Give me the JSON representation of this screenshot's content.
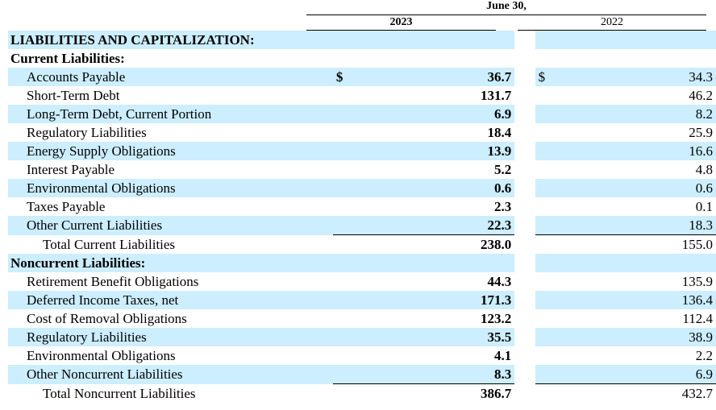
{
  "header": {
    "period": "June 30,",
    "year_current": "2023",
    "year_prior": "2022"
  },
  "section_title": "LIABILITIES AND CAPITALIZATION:",
  "current": {
    "title": "Current Liabilities:",
    "rows": [
      {
        "label": "Accounts Payable",
        "sym": "$",
        "v2023": "36.7",
        "v2022": "34.3"
      },
      {
        "label": "Short-Term Debt",
        "sym": "",
        "v2023": "131.7",
        "v2022": "46.2"
      },
      {
        "label": "Long-Term Debt, Current Portion",
        "sym": "",
        "v2023": "6.9",
        "v2022": "8.2"
      },
      {
        "label": "Regulatory Liabilities",
        "sym": "",
        "v2023": "18.4",
        "v2022": "25.9"
      },
      {
        "label": "Energy Supply Obligations",
        "sym": "",
        "v2023": "13.9",
        "v2022": "16.6"
      },
      {
        "label": "Interest Payable",
        "sym": "",
        "v2023": "5.2",
        "v2022": "4.8"
      },
      {
        "label": "Environmental Obligations",
        "sym": "",
        "v2023": "0.6",
        "v2022": "0.6"
      },
      {
        "label": "Taxes Payable",
        "sym": "",
        "v2023": "2.3",
        "v2022": "0.1"
      },
      {
        "label": "Other Current Liabilities",
        "sym": "",
        "v2023": "22.3",
        "v2022": "18.3"
      }
    ],
    "total": {
      "label": "Total Current Liabilities",
      "v2023": "238.0",
      "v2022": "155.0"
    }
  },
  "noncurrent": {
    "title": "Noncurrent Liabilities:",
    "rows": [
      {
        "label": "Retirement Benefit Obligations",
        "sym": "",
        "v2023": "44.3",
        "v2022": "135.9"
      },
      {
        "label": "Deferred Income Taxes, net",
        "sym": "",
        "v2023": "171.3",
        "v2022": "136.4"
      },
      {
        "label": "Cost of Removal Obligations",
        "sym": "",
        "v2023": "123.2",
        "v2022": "112.4"
      },
      {
        "label": "Regulatory Liabilities",
        "sym": "",
        "v2023": "35.5",
        "v2022": "38.9"
      },
      {
        "label": "Environmental Obligations",
        "sym": "",
        "v2023": "4.1",
        "v2022": "2.2"
      },
      {
        "label": "Other Noncurrent Liabilities",
        "sym": "",
        "v2023": "8.3",
        "v2022": "6.9"
      }
    ],
    "total": {
      "label": "Total Noncurrent Liabilities",
      "v2023": "386.7",
      "v2022": "432.7"
    }
  }
}
